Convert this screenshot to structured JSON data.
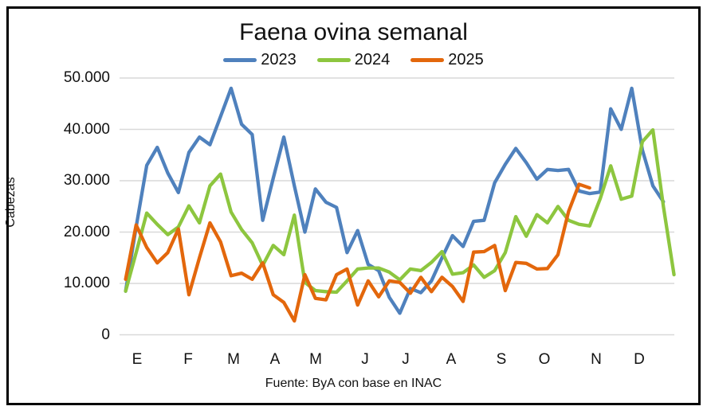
{
  "page": {
    "background": "#ffffff",
    "frame_border_color": "#000000"
  },
  "chart": {
    "title": "Faena ovina semanal",
    "footer": "Fuente: ByA con base en INAC",
    "y_axis": {
      "title": "Cabezas",
      "tick_labels": [
        "50.000",
        "40.000",
        "30.000",
        "20.000",
        "10.000",
        "0"
      ],
      "tick_values": [
        50000,
        40000,
        30000,
        20000,
        10000,
        0
      ]
    },
    "x_axis": {
      "month_labels": [
        "E",
        "F",
        "M",
        "A",
        "M",
        "J",
        "J",
        "A",
        "S",
        "O",
        "N",
        "D"
      ]
    },
    "legend": [
      {
        "label": "2023",
        "color": "#4F81BD"
      },
      {
        "label": "2024",
        "color": "#8DC63F"
      },
      {
        "label": "2025",
        "color": "#E3670C"
      }
    ],
    "gridline_color": "#D9D9D9"
  },
  "chart_data": {
    "type": "line",
    "title": "Faena ovina semanal",
    "xlabel": "",
    "ylabel": "Cabezas",
    "x_unit": "semana del año (enero a diciembre)",
    "categories_months": [
      "E",
      "F",
      "M",
      "A",
      "M",
      "J",
      "J",
      "A",
      "S",
      "O",
      "N",
      "D"
    ],
    "ylim": [
      0,
      50000
    ],
    "y_tick_step": 10000,
    "grid": true,
    "legend_position": "top-center",
    "source_note": "Fuente: ByA con base en INAC",
    "series": [
      {
        "name": "2023",
        "color": "#4F81BD",
        "values": [
          8500,
          21000,
          33000,
          36500,
          31500,
          27700,
          35500,
          38500,
          37000,
          42500,
          48000,
          41000,
          39000,
          22300,
          30500,
          38500,
          29000,
          20000,
          28400,
          25800,
          24800,
          16000,
          20300,
          13700,
          12500,
          7300,
          4200,
          9000,
          8200,
          10500,
          15000,
          19300,
          17200,
          22100,
          22300,
          29600,
          33200,
          36300,
          33500,
          30300,
          32200,
          32000,
          32200,
          28000,
          27500,
          27800,
          44000,
          40000,
          48000,
          36000,
          29000,
          25900
        ]
      },
      {
        "name": "2024",
        "color": "#8DC63F",
        "values": [
          8500,
          16000,
          23700,
          21500,
          19500,
          21000,
          25100,
          21800,
          29000,
          31300,
          23900,
          20500,
          17900,
          13500,
          17400,
          15600,
          23300,
          10200,
          8600,
          8400,
          8300,
          10500,
          12800,
          13000,
          13000,
          12200,
          10700,
          12800,
          12500,
          14100,
          16200,
          11800,
          12100,
          13600,
          11200,
          12500,
          16000,
          23000,
          19200,
          23400,
          21800,
          25000,
          22300,
          21500,
          21200,
          26500,
          32900,
          26400,
          27000,
          37600,
          39900,
          25000,
          11700
        ]
      },
      {
        "name": "2025",
        "color": "#E3670C",
        "values": [
          10800,
          21400,
          17000,
          14000,
          16000,
          20600,
          7800,
          15000,
          21800,
          18100,
          11500,
          12000,
          10800,
          14000,
          7800,
          6300,
          2700,
          11700,
          7100,
          6800,
          11700,
          12800,
          5800,
          10500,
          7400,
          10500,
          10200,
          8100,
          11200,
          8400,
          11200,
          9400,
          6500,
          16100,
          16200,
          17400,
          8600,
          14100,
          13900,
          12800,
          12900,
          15600,
          24000,
          29300,
          28600
        ]
      }
    ]
  }
}
